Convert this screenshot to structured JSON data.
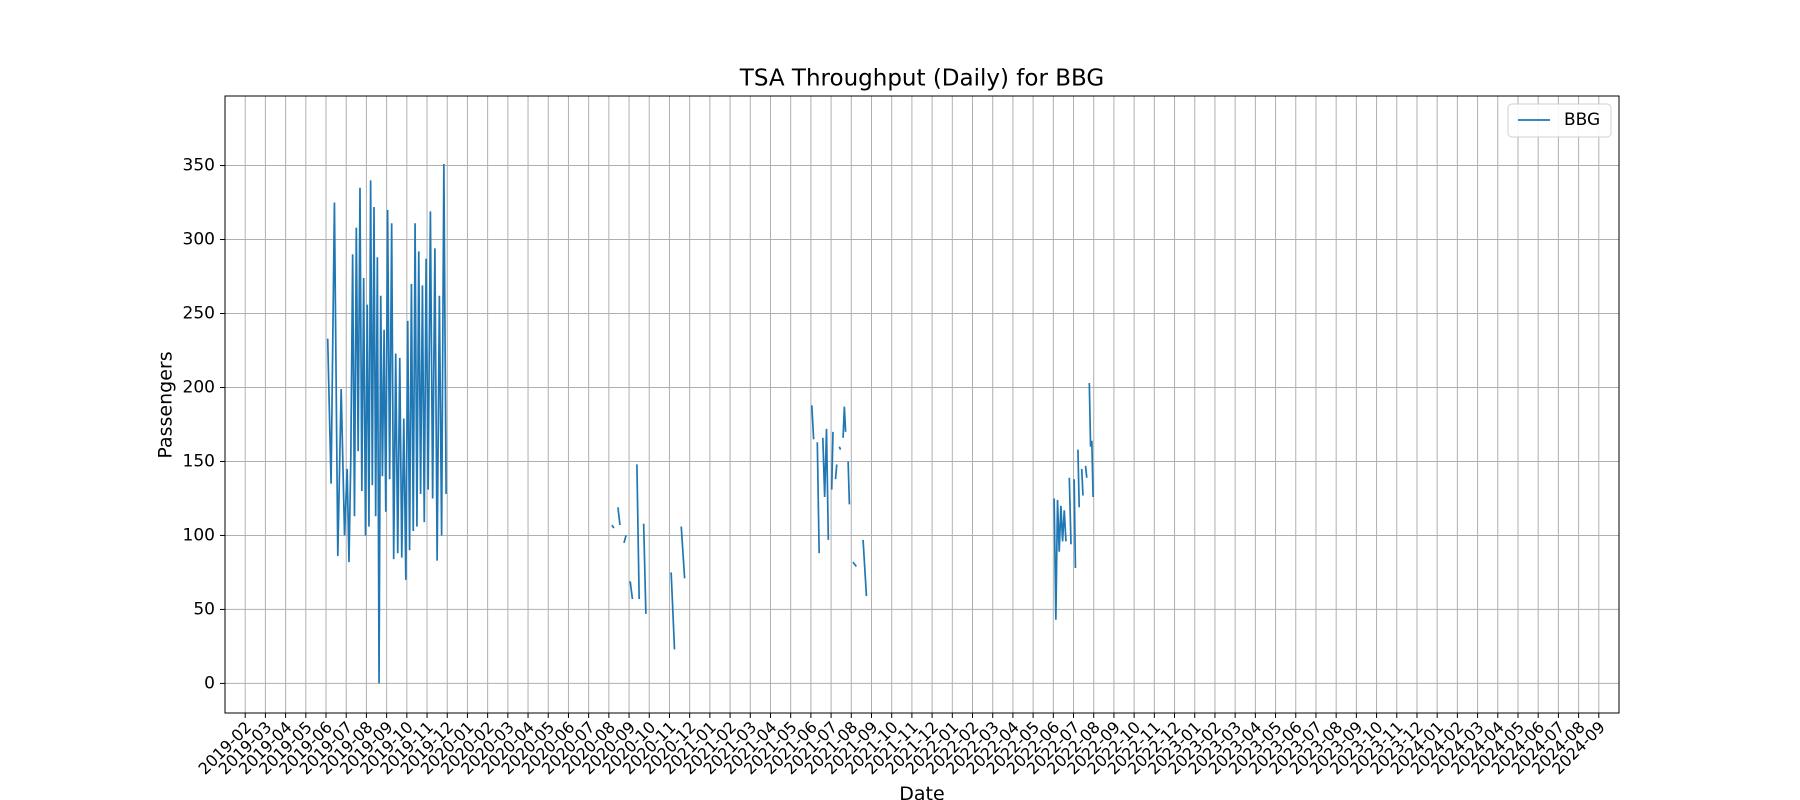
{
  "chart_data": {
    "type": "line",
    "title": "TSA Throughput (Daily) for BBG",
    "xlabel": "Date",
    "ylabel": "Passengers",
    "xlim": [
      "2019-01",
      "2024-10"
    ],
    "ylim": [
      -20,
      397
    ],
    "xticks": [
      "2019-02",
      "2019-03",
      "2019-04",
      "2019-05",
      "2019-06",
      "2019-07",
      "2019-08",
      "2019-09",
      "2019-10",
      "2019-11",
      "2019-12",
      "2020-01",
      "2020-02",
      "2020-03",
      "2020-04",
      "2020-05",
      "2020-06",
      "2020-07",
      "2020-08",
      "2020-09",
      "2020-10",
      "2020-11",
      "2020-12",
      "2021-01",
      "2021-02",
      "2021-03",
      "2021-04",
      "2021-05",
      "2021-06",
      "2021-07",
      "2021-08",
      "2021-09",
      "2021-10",
      "2021-11",
      "2021-12",
      "2022-01",
      "2022-02",
      "2022-03",
      "2022-04",
      "2022-05",
      "2022-06",
      "2022-07",
      "2022-08",
      "2022-09",
      "2022-10",
      "2022-11",
      "2022-12",
      "2023-01",
      "2023-02",
      "2023-03",
      "2023-04",
      "2023-05",
      "2023-06",
      "2023-07",
      "2023-08",
      "2023-09",
      "2023-10",
      "2023-11",
      "2023-12",
      "2024-01",
      "2024-02",
      "2024-03",
      "2024-04",
      "2024-05",
      "2024-06",
      "2024-07",
      "2024-08",
      "2024-09"
    ],
    "yticks": [
      0,
      50,
      100,
      150,
      200,
      250,
      300,
      350
    ],
    "grid": true,
    "legend": "upper right",
    "x": [
      "2019-06",
      "2019-06",
      "2019-06",
      "2019-06",
      "2019-06",
      "2019-06",
      "2019-07",
      "2019-07",
      "2019-07",
      "2019-07",
      "2019-07",
      "2019-07",
      "2019-07",
      "2019-07",
      "2019-07",
      "2019-07",
      "2019-07",
      "2019-08",
      "2019-08",
      "2019-08",
      "2019-08",
      "2019-08",
      "2019-08",
      "2019-08",
      "2019-08",
      "2019-08",
      "2019-08",
      "2019-08",
      "2019-08",
      "2019-09",
      "2019-09",
      "2019-09",
      "2019-09",
      "2019-09",
      "2019-09",
      "2019-09",
      "2019-09",
      "2019-09",
      "2019-09",
      "2019-10",
      "2019-10",
      "2019-10",
      "2019-10",
      "2019-10",
      "2019-10",
      "2019-10",
      "2019-10",
      "2019-10",
      "2019-10",
      "2019-10",
      "2019-11",
      "2019-11",
      "2019-11",
      "2019-11",
      "2019-11",
      "2019-11",
      "2019-11",
      "2019-11",
      "2019-11",
      "2020-08",
      "2020-08",
      "2020-08",
      "2020-08",
      "2020-08",
      "2020-08",
      "2020-08",
      "2020-08",
      "2020-08",
      "2020-08",
      "2020-09",
      "2020-09",
      "2020-09",
      "2020-09",
      "2020-09",
      "2020-09",
      "2020-09",
      "2020-09",
      "2020-09",
      "2020-11",
      "2020-11",
      "2020-11",
      "2020-11",
      "2020-11",
      "2020-11",
      "2021-06",
      "2021-06",
      "2021-06",
      "2021-06",
      "2021-06",
      "2021-06",
      "2021-06",
      "2021-06",
      "2021-06",
      "2021-06",
      "2021-06",
      "2021-07",
      "2021-07",
      "2021-07",
      "2021-07",
      "2021-07",
      "2021-07",
      "2021-07",
      "2021-07",
      "2021-07",
      "2021-07",
      "2021-07",
      "2021-07",
      "2021-07",
      "2021-07",
      "2021-07",
      "2021-07",
      "2021-08",
      "2021-08",
      "2021-08",
      "2021-08",
      "2021-08",
      "2021-08",
      "2022-06",
      "2022-06",
      "2022-06",
      "2022-06",
      "2022-06",
      "2022-06",
      "2022-06",
      "2022-06",
      "2022-06",
      "2022-06",
      "2022-06",
      "2022-06",
      "2022-07",
      "2022-07",
      "2022-07",
      "2022-07",
      "2022-07",
      "2022-07",
      "2022-07",
      "2022-07",
      "2022-07",
      "2022-07",
      "2022-07",
      "2022-07",
      "2022-07",
      "2022-07",
      "2022-07",
      "2022-07"
    ],
    "series": [
      {
        "name": "BBG",
        "color": "#1f77b4",
        "values": [
          233,
          135,
          325,
          86,
          199,
          100,
          145,
          82,
          152,
          290,
          113,
          308,
          157,
          335,
          130,
          274,
          100,
          256,
          106,
          340,
          134,
          322,
          113,
          288,
          0,
          262,
          140,
          239,
          116,
          320,
          138,
          311,
          84,
          223,
          88,
          220,
          85,
          179,
          70,
          245,
          90,
          270,
          103,
          311,
          106,
          292,
          128,
          269,
          109,
          287,
          131,
          319,
          125,
          294,
          83,
          262,
          100,
          351,
          128,
          null,
          107,
          105,
          null,
          119,
          107,
          null,
          95,
          100,
          null,
          69,
          57,
          null,
          148,
          57,
          null,
          108,
          47,
          null,
          75,
          23,
          null,
          106,
          71,
          null,
          188,
          165,
          null,
          163,
          88,
          null,
          166,
          126,
          172,
          97,
          null,
          131,
          170,
          null,
          138,
          148,
          null,
          160,
          158,
          null,
          166,
          187,
          170,
          null,
          150,
          121,
          null,
          82,
          79,
          null,
          97,
          59,
          null,
          125,
          43,
          124,
          89,
          120,
          96,
          117,
          96,
          null,
          139,
          94,
          null,
          138,
          78,
          null,
          158,
          119,
          null,
          145,
          127,
          null,
          147,
          139,
          null,
          203,
          160,
          164,
          126
        ]
      }
    ]
  }
}
